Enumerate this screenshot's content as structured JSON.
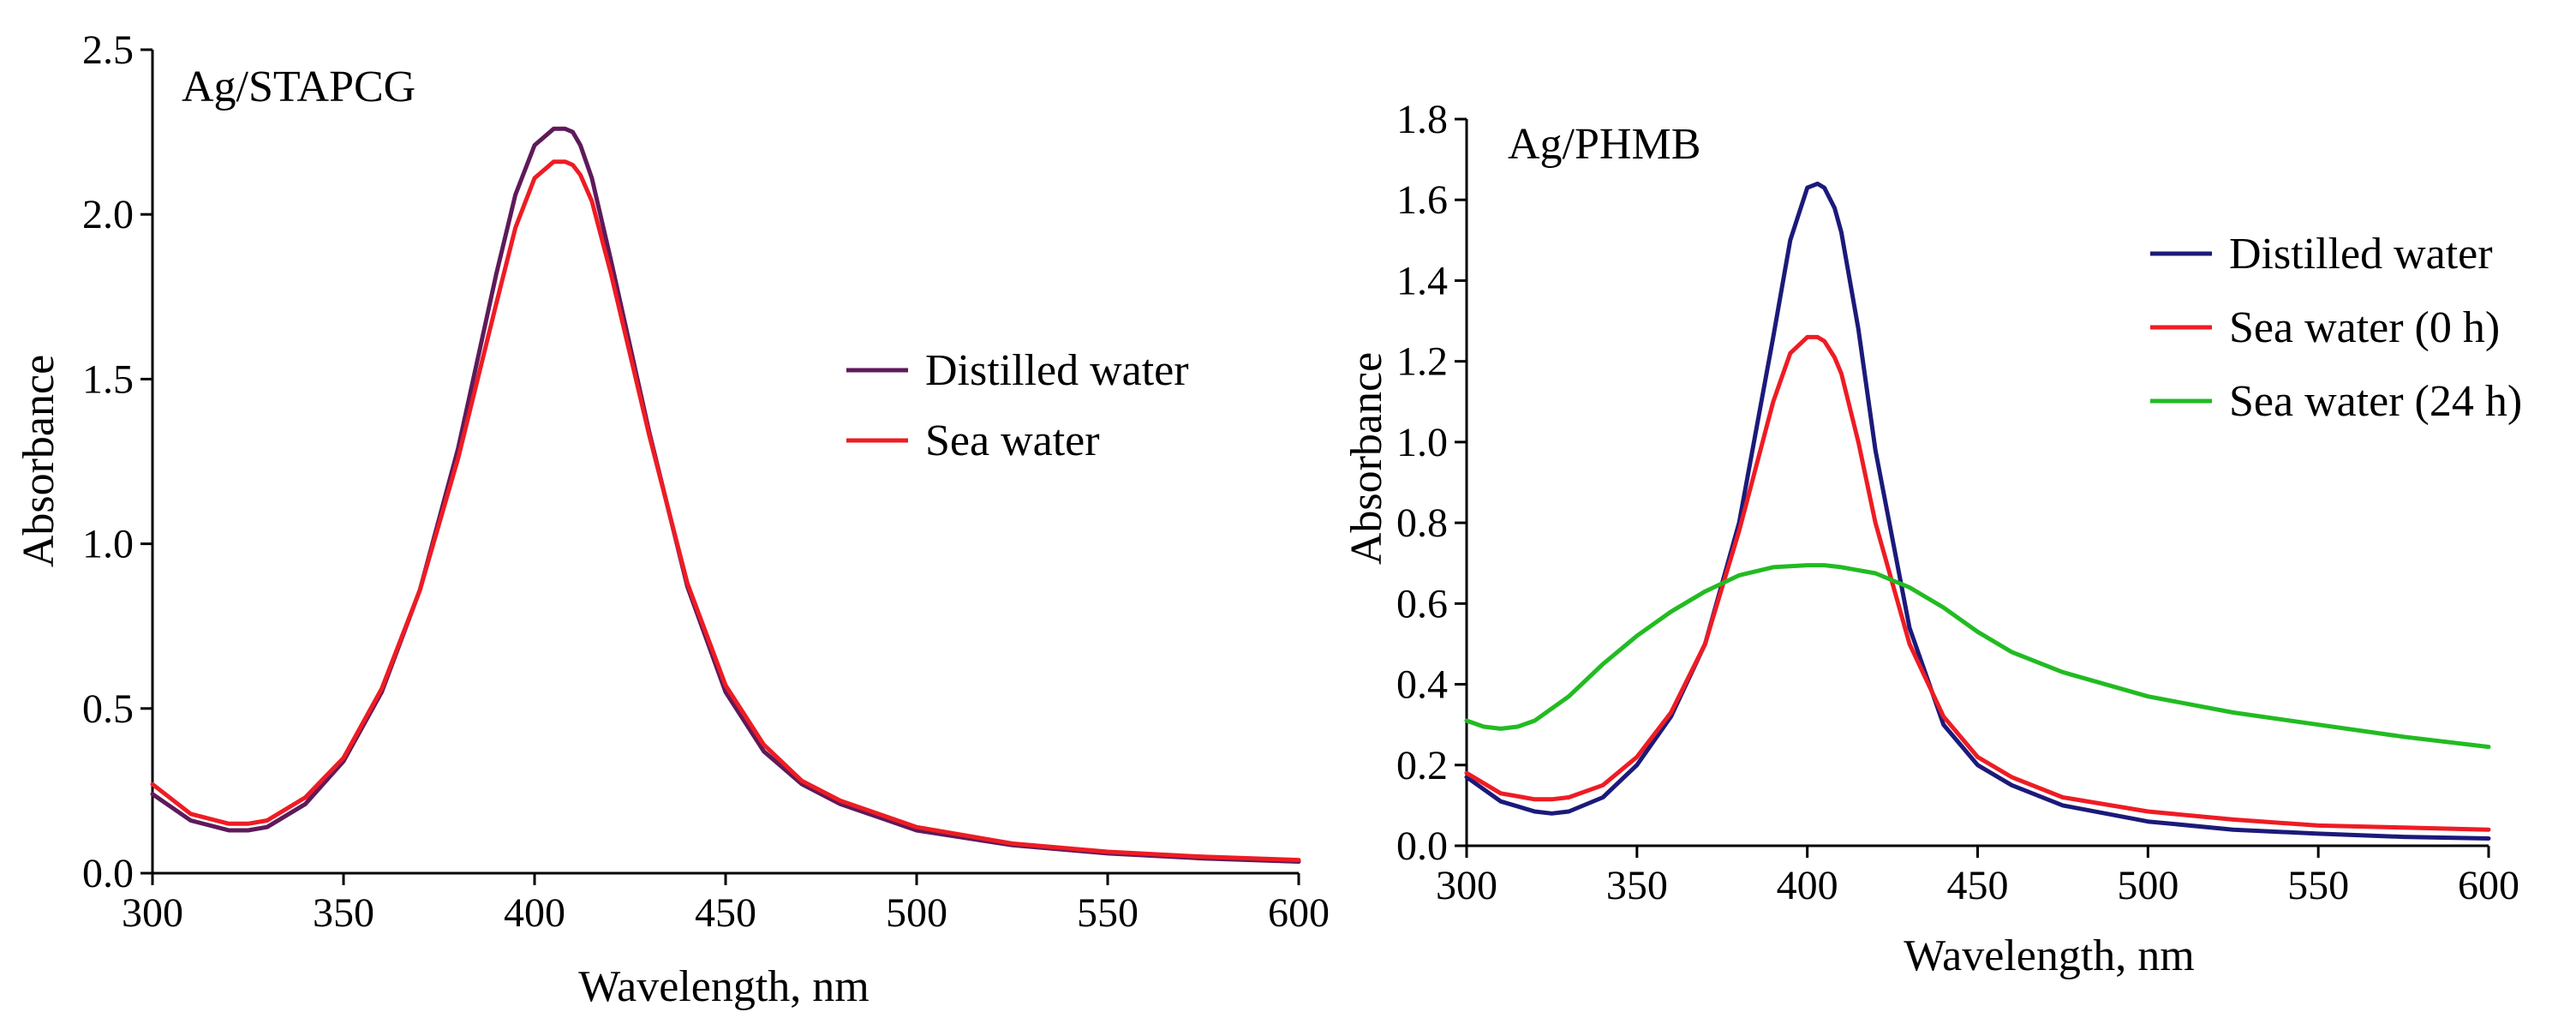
{
  "chart_data": [
    {
      "type": "line",
      "title": "Ag/STAPCG",
      "xlabel": "Wavelength, nm",
      "ylabel": "Absorbance",
      "xlim": [
        300,
        600
      ],
      "ylim": [
        0.0,
        2.5
      ],
      "xticks": [
        300,
        350,
        400,
        450,
        500,
        550,
        600
      ],
      "xtick_labels": [
        "300",
        "350",
        "400",
        "450",
        "500",
        "550",
        "600"
      ],
      "yticks": [
        0.0,
        0.5,
        1.0,
        1.5,
        2.0,
        2.5
      ],
      "ytick_labels": [
        "0.0",
        "0.5",
        "1.0",
        "1.5",
        "2.0",
        "2.5"
      ],
      "legend_position": "right",
      "series": [
        {
          "name": "Distilled water",
          "color": "#5e1a5a",
          "x": [
            300,
            310,
            320,
            325,
            330,
            340,
            350,
            360,
            370,
            380,
            390,
            395,
            400,
            405,
            408,
            410,
            412,
            415,
            420,
            430,
            440,
            450,
            460,
            470,
            480,
            500,
            525,
            550,
            575,
            600
          ],
          "y": [
            0.24,
            0.16,
            0.13,
            0.13,
            0.14,
            0.21,
            0.34,
            0.55,
            0.86,
            1.29,
            1.82,
            2.06,
            2.21,
            2.26,
            2.26,
            2.25,
            2.21,
            2.11,
            1.86,
            1.34,
            0.87,
            0.55,
            0.37,
            0.27,
            0.21,
            0.13,
            0.085,
            0.06,
            0.045,
            0.035
          ]
        },
        {
          "name": "Sea water",
          "color": "#ee1c24",
          "x": [
            300,
            310,
            320,
            325,
            330,
            340,
            350,
            360,
            370,
            380,
            390,
            395,
            400,
            405,
            408,
            410,
            412,
            415,
            420,
            430,
            440,
            450,
            460,
            470,
            480,
            500,
            525,
            550,
            575,
            600
          ],
          "y": [
            0.27,
            0.18,
            0.15,
            0.15,
            0.16,
            0.23,
            0.35,
            0.56,
            0.86,
            1.26,
            1.73,
            1.96,
            2.11,
            2.16,
            2.16,
            2.15,
            2.12,
            2.04,
            1.82,
            1.33,
            0.88,
            0.57,
            0.39,
            0.28,
            0.22,
            0.14,
            0.09,
            0.065,
            0.05,
            0.04
          ]
        }
      ]
    },
    {
      "type": "line",
      "title": "Ag/PHMB",
      "xlabel": "Wavelength, nm",
      "ylabel": "Absorbance",
      "xlim": [
        300,
        600
      ],
      "ylim": [
        0.0,
        1.8
      ],
      "xticks": [
        300,
        350,
        400,
        450,
        500,
        550,
        600
      ],
      "xtick_labels": [
        "300",
        "350",
        "400",
        "450",
        "500",
        "550",
        "600"
      ],
      "yticks": [
        0.0,
        0.2,
        0.4,
        0.6,
        0.8,
        1.0,
        1.2,
        1.4,
        1.6,
        1.8
      ],
      "ytick_labels": [
        "0.0",
        "0.2",
        "0.4",
        "0.6",
        "0.8",
        "1.0",
        "1.2",
        "1.4",
        "1.6",
        "1.8"
      ],
      "legend_position": "top-right",
      "series": [
        {
          "name": "Distilled water",
          "color": "#1b1a7a",
          "x": [
            300,
            310,
            320,
            325,
            330,
            340,
            350,
            360,
            370,
            380,
            390,
            395,
            400,
            403,
            405,
            408,
            410,
            415,
            420,
            430,
            440,
            450,
            460,
            475,
            500,
            525,
            550,
            575,
            600
          ],
          "y": [
            0.17,
            0.11,
            0.085,
            0.08,
            0.085,
            0.12,
            0.2,
            0.32,
            0.5,
            0.8,
            1.26,
            1.5,
            1.63,
            1.64,
            1.63,
            1.58,
            1.52,
            1.28,
            0.98,
            0.54,
            0.3,
            0.2,
            0.15,
            0.1,
            0.06,
            0.04,
            0.03,
            0.022,
            0.018
          ]
        },
        {
          "name": "Sea water (0 h)",
          "color": "#ee1c24",
          "x": [
            300,
            310,
            320,
            325,
            330,
            340,
            350,
            360,
            370,
            380,
            390,
            395,
            400,
            403,
            405,
            408,
            410,
            415,
            420,
            430,
            440,
            450,
            460,
            475,
            500,
            525,
            550,
            575,
            600
          ],
          "y": [
            0.18,
            0.13,
            0.115,
            0.115,
            0.12,
            0.15,
            0.22,
            0.33,
            0.5,
            0.78,
            1.1,
            1.22,
            1.26,
            1.26,
            1.25,
            1.21,
            1.17,
            1.0,
            0.8,
            0.5,
            0.32,
            0.22,
            0.17,
            0.12,
            0.085,
            0.065,
            0.05,
            0.045,
            0.04
          ]
        },
        {
          "name": "Sea water (24 h)",
          "color": "#22bb22",
          "x": [
            300,
            305,
            310,
            315,
            320,
            330,
            340,
            350,
            360,
            370,
            380,
            390,
            400,
            405,
            410,
            420,
            430,
            440,
            450,
            460,
            475,
            500,
            525,
            550,
            575,
            600
          ],
          "y": [
            0.31,
            0.295,
            0.29,
            0.295,
            0.31,
            0.37,
            0.45,
            0.52,
            0.58,
            0.63,
            0.67,
            0.69,
            0.695,
            0.695,
            0.69,
            0.675,
            0.64,
            0.59,
            0.53,
            0.48,
            0.43,
            0.37,
            0.33,
            0.3,
            0.27,
            0.245
          ]
        }
      ]
    }
  ]
}
